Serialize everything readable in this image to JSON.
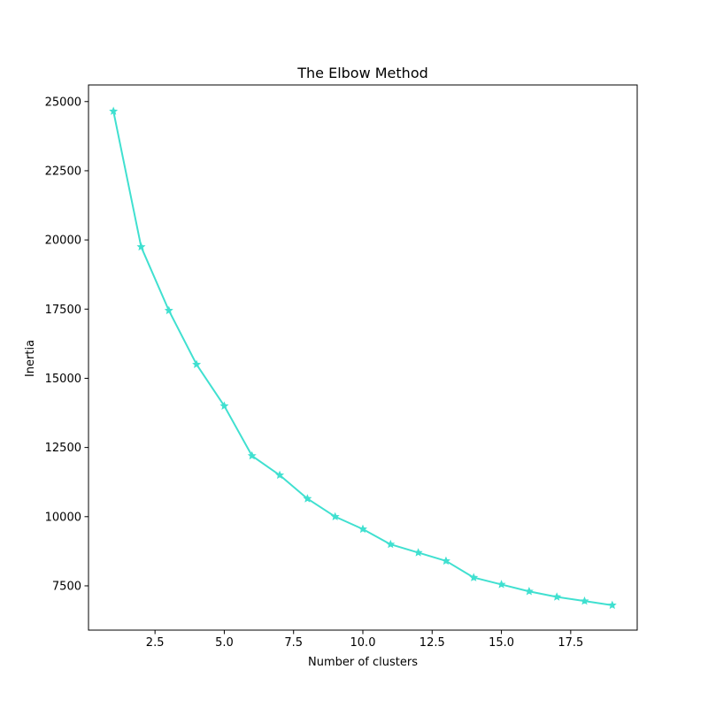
{
  "chart_data": {
    "type": "line",
    "title": "The Elbow Method",
    "xlabel": "Number of clusters",
    "ylabel": "Inertia",
    "xlim": [
      0.1,
      19.9
    ],
    "ylim": [
      5900,
      25600
    ],
    "x_ticks": [
      2.5,
      5.0,
      7.5,
      10.0,
      12.5,
      15.0,
      17.5
    ],
    "x_tick_labels": [
      "2.5",
      "5.0",
      "7.5",
      "10.0",
      "12.5",
      "15.0",
      "17.5"
    ],
    "y_ticks": [
      7500,
      10000,
      12500,
      15000,
      17500,
      20000,
      22500,
      25000
    ],
    "y_tick_labels": [
      "7500",
      "10000",
      "12500",
      "15000",
      "17500",
      "20000",
      "22500",
      "25000"
    ],
    "grid": false,
    "series": [
      {
        "x": [
          1,
          2,
          3,
          4,
          5,
          6,
          7,
          8,
          9,
          10,
          11,
          12,
          13,
          14,
          15,
          16,
          17,
          18,
          19
        ],
        "y": [
          24650,
          19750,
          17450,
          15500,
          14000,
          12200,
          11500,
          10650,
          10000,
          9550,
          9000,
          8700,
          8400,
          7800,
          7550,
          7300,
          7100,
          6950,
          6800
        ],
        "color": "#40e0d0",
        "marker": "star"
      }
    ]
  }
}
